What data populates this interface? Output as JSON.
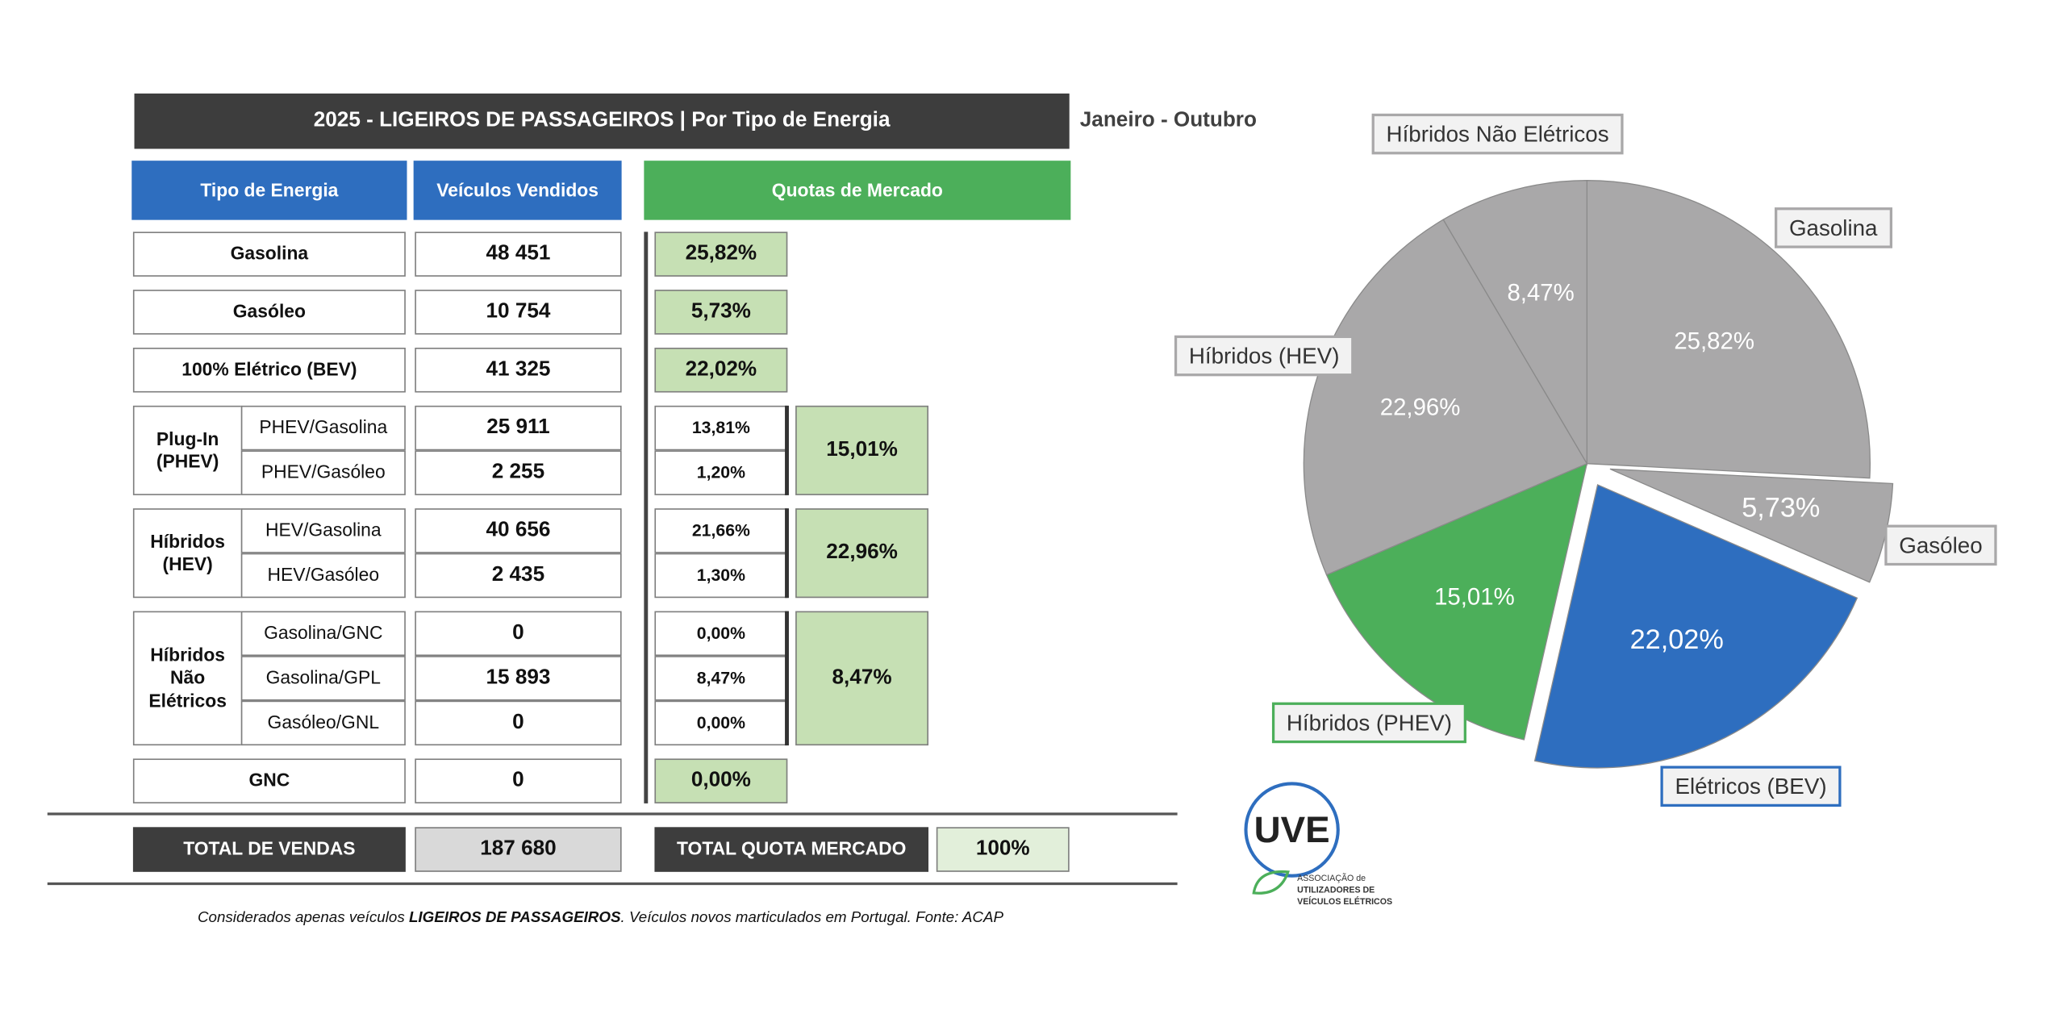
{
  "header": {
    "title": "2025 - LIGEIROS DE PASSAGEIROS | Por Tipo de Energia",
    "period": "Janeiro - Outubro"
  },
  "table": {
    "columns": [
      "Tipo de Energia",
      "Veículos Vendidos",
      "Quotas de Mercado"
    ],
    "rows": [
      {
        "label": "Gasolina",
        "sold": "48 451",
        "share": "25,82%"
      },
      {
        "label": "Gasóleo",
        "sold": "10 754",
        "share": "5,73%"
      },
      {
        "label": "100% Elétrico (BEV)",
        "sold": "41 325",
        "share": "22,02%"
      },
      {
        "label": "Plug-In (PHEV)",
        "share": "15,01%",
        "items": [
          {
            "label": "PHEV/Gasolina",
            "sold": "25 911",
            "share": "13,81%"
          },
          {
            "label": "PHEV/Gasóleo",
            "sold": "2 255",
            "share": "1,20%"
          }
        ]
      },
      {
        "label": "Híbridos (HEV)",
        "share": "22,96%",
        "items": [
          {
            "label": "HEV/Gasolina",
            "sold": "40 656",
            "share": "21,66%"
          },
          {
            "label": "HEV/Gasóleo",
            "sold": "2 435",
            "share": "1,30%"
          }
        ]
      },
      {
        "label": "Híbridos Não Elétricos",
        "share": "8,47%",
        "items": [
          {
            "label": "Gasolina/GNC",
            "sold": "0",
            "share": "0,00%"
          },
          {
            "label": "Gasolina/GPL",
            "sold": "15 893",
            "share": "8,47%"
          },
          {
            "label": "Gasóleo/GNL",
            "sold": "0",
            "share": "0,00%"
          }
        ]
      },
      {
        "label": "GNC",
        "sold": "0",
        "share": "0,00%"
      }
    ],
    "totals": {
      "sales_label": "TOTAL DE VENDAS",
      "sales": "187 680",
      "share_label": "TOTAL QUOTA MERCADO",
      "share": "100%"
    }
  },
  "footnote": {
    "before": "Considerados apenas veículos ",
    "bold": "LIGEIROS DE PASSAGEIROS",
    "after": ". Veículos novos marticulados em Portugal. Fonte: ACAP"
  },
  "logo": {
    "mark": "UVE",
    "lines": [
      "ASSOCIAÇÃO de",
      "UTILIZADORES DE",
      "VEÍCULOS ELÉTRICOS"
    ]
  },
  "chart_data": {
    "type": "pie",
    "categories": [
      "Gasolina",
      "Gasóleo",
      "Elétricos (BEV)",
      "Híbridos (PHEV)",
      "Híbridos (HEV)",
      "Híbridos Não Elétricos"
    ],
    "values": [
      25.82,
      5.73,
      22.02,
      15.01,
      22.96,
      8.47
    ],
    "value_labels": [
      "25,82%",
      "5,73%",
      "22,02%",
      "15,01%",
      "22,96%",
      "8,47%"
    ],
    "colors": [
      "#a9a8a9",
      "#a9a8a9",
      "#2e6ebf",
      "#4caf5a",
      "#a9a8a9",
      "#a9a8a9"
    ],
    "explode": [
      false,
      true,
      true,
      false,
      false,
      false
    ]
  }
}
